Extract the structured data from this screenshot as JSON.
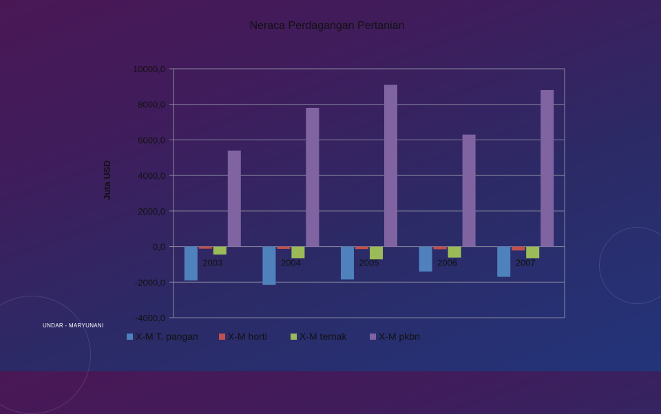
{
  "chart_data": {
    "type": "bar",
    "title": "Neraca Perdagangan Pertanian",
    "ylabel": "Juta USD",
    "xlabel": "",
    "categories": [
      "2003",
      "2004",
      "2005",
      "2006",
      "2007"
    ],
    "ylim": [
      -4000,
      10000
    ],
    "yticks": [
      10000,
      8000,
      6000,
      4000,
      2000,
      0,
      -2000,
      -4000
    ],
    "ytick_labels": [
      "10000,0",
      "8000,0",
      "6000,0",
      "4000,0",
      "2000,0",
      "0,0",
      "-2000,0",
      "-4000,0"
    ],
    "series": [
      {
        "name": "X-M T. pangan",
        "color": "#4f81bd",
        "values": [
          -1900,
          -2150,
          -1850,
          -1400,
          -1700
        ]
      },
      {
        "name": "X-M horti",
        "color": "#c0504d",
        "values": [
          -120,
          -130,
          -140,
          -150,
          -220
        ]
      },
      {
        "name": "X-M ternak",
        "color": "#9bbb59",
        "values": [
          -450,
          -650,
          -720,
          -620,
          -650
        ]
      },
      {
        "name": "X-M pkbn",
        "color": "#8064a2",
        "values": [
          5400,
          7800,
          9100,
          6300,
          8800
        ]
      }
    ],
    "grid": true,
    "legend": "bottom"
  },
  "footer": {
    "credit": "UNDAR - MARYUNANI"
  }
}
